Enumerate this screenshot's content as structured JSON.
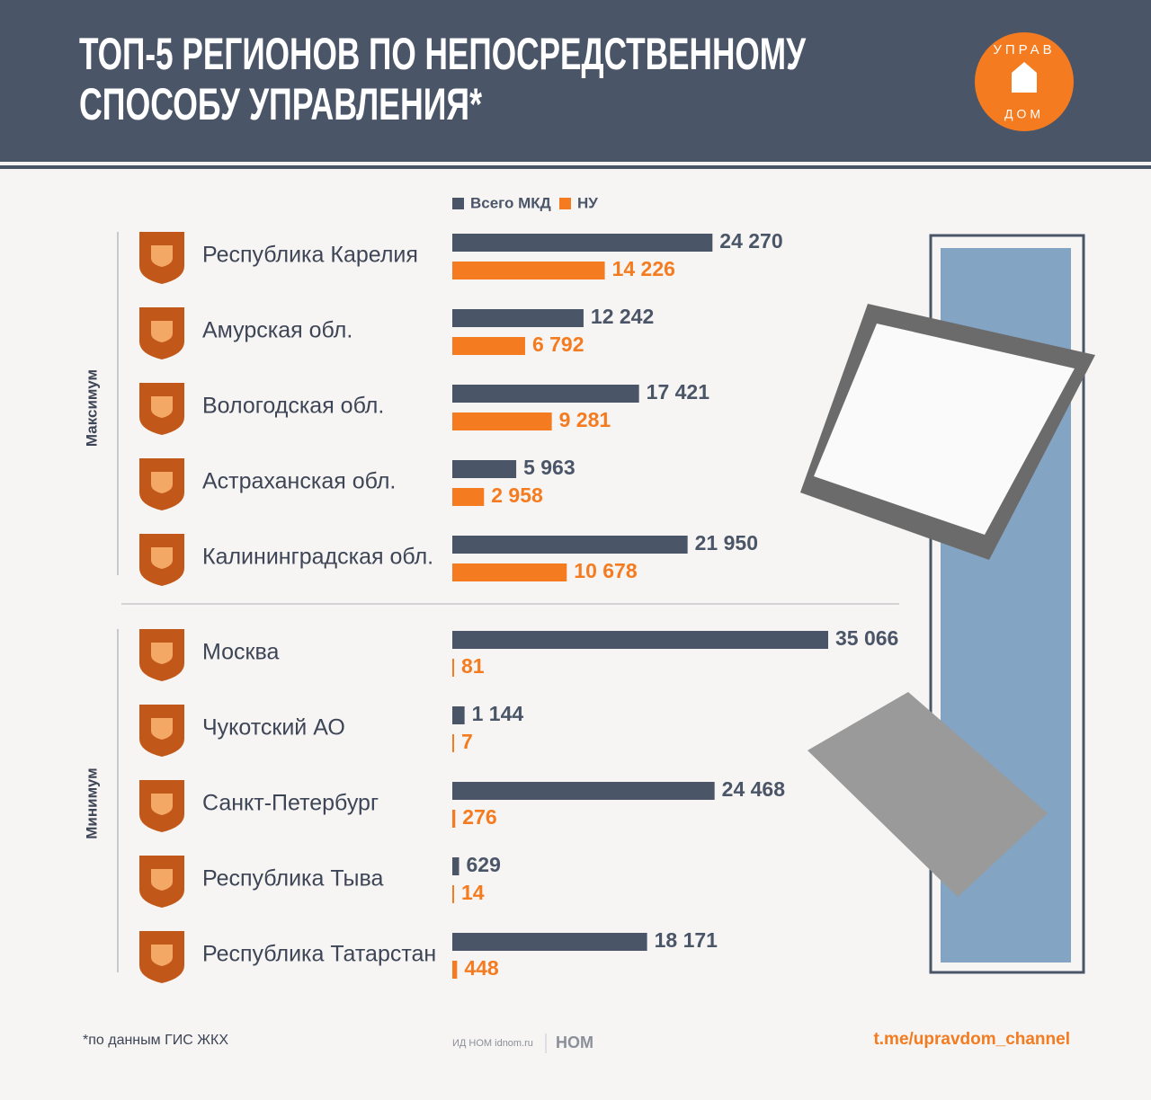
{
  "chart_data": {
    "type": "bar",
    "orientation": "horizontal",
    "title": [
      "ТОП-5 РЕГИОНОВ ПО НЕПОСРЕДСТВЕННОМУ",
      "СПОСОБУ УПРАВЛЕНИЯ*"
    ],
    "groups": [
      "Максимум",
      "Минимум"
    ],
    "categories": [
      "Республика Карелия",
      "Амурская обл.",
      "Вологодская обл.",
      "Астраханская обл.",
      "Калининградская обл.",
      "Москва",
      "Чукотский АО",
      "Санкт-Петербург",
      "Республика Тыва",
      "Республика Татарстан"
    ],
    "series": [
      {
        "name": "Всего МКД",
        "color": "#4b5568",
        "values": [
          24270,
          12242,
          17421,
          5963,
          21950,
          35066,
          1144,
          24468,
          629,
          18171
        ],
        "value_labels": [
          "24 270",
          "12 242",
          "17 421",
          "5 963",
          "21 950",
          "35 066",
          "1 144",
          "24 468",
          "629",
          "18 171"
        ]
      },
      {
        "name": "НУ",
        "color": "#f47b20",
        "values": [
          14226,
          6792,
          9281,
          2958,
          10678,
          81,
          7,
          276,
          14,
          448
        ],
        "value_labels": [
          "14 226",
          "6 792",
          "9 281",
          "2 958",
          "10 678",
          "81",
          "7",
          "276",
          "14",
          "448"
        ]
      }
    ],
    "footnote": "*по данным ГИС ЖКХ",
    "source": "ИД НОМ idnom.ru",
    "brand": "НОМ",
    "channel": "t.me/upravdom_channel",
    "logo": [
      "УПРАВ",
      "ДОМ"
    ]
  }
}
